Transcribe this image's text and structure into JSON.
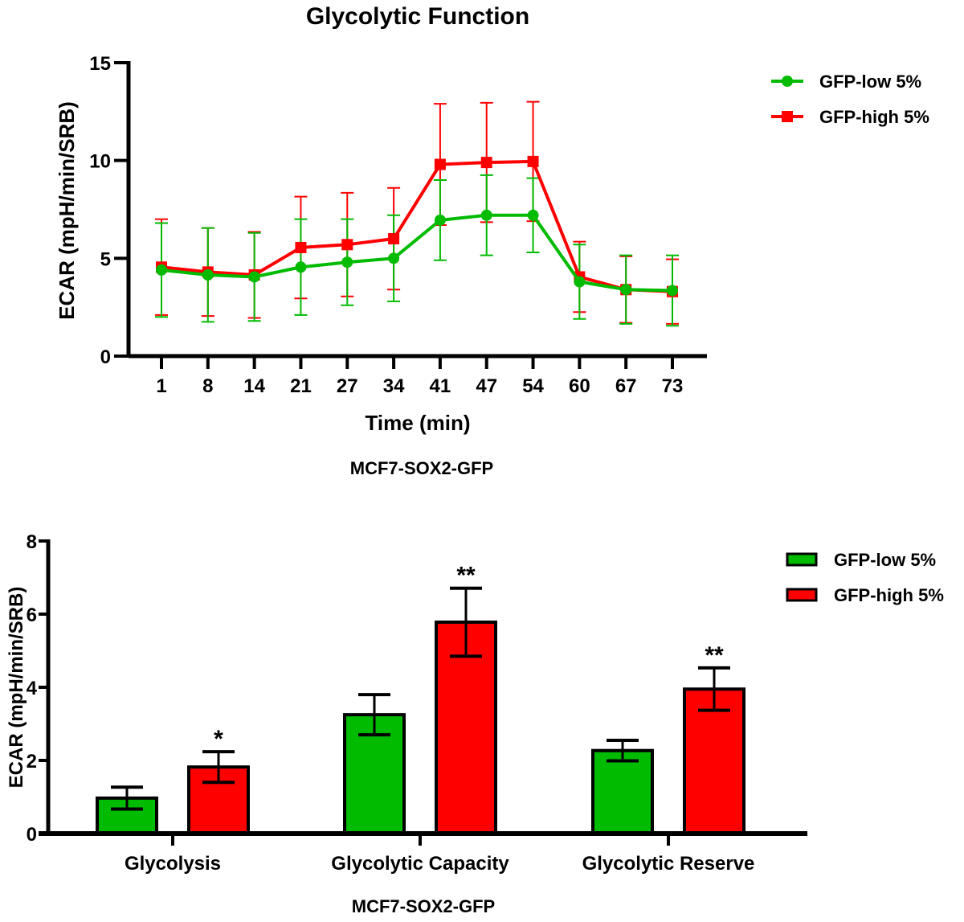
{
  "chart_data": [
    {
      "type": "line",
      "title": "Glycolytic Function",
      "xlabel": "Time (min)",
      "ylabel": "ECAR (mpH/min/SRB)",
      "subtitle": "MCF7-SOX2-GFP",
      "categories": [
        "1",
        "8",
        "14",
        "21",
        "27",
        "34",
        "41",
        "47",
        "54",
        "60",
        "67",
        "73"
      ],
      "ylim": [
        0,
        15
      ],
      "yticks": [
        0,
        5,
        10,
        15
      ],
      "legend_position": "top-right",
      "series": [
        {
          "name": "GFP-low 5%",
          "color": "#00bb00",
          "marker": "circle",
          "values": [
            4.4,
            4.15,
            4.05,
            4.55,
            4.8,
            5.0,
            6.95,
            7.2,
            7.2,
            3.8,
            3.4,
            3.35
          ],
          "error": [
            2.4,
            2.4,
            2.25,
            2.45,
            2.2,
            2.2,
            2.05,
            2.05,
            1.9,
            1.9,
            1.75,
            1.8
          ]
        },
        {
          "name": "GFP-high 5%",
          "color": "#ff0000",
          "marker": "square",
          "values": [
            4.55,
            4.3,
            4.15,
            5.55,
            5.7,
            6.0,
            9.8,
            9.9,
            9.95,
            4.05,
            3.4,
            3.3
          ],
          "error": [
            2.45,
            2.25,
            2.2,
            2.6,
            2.65,
            2.6,
            3.1,
            3.05,
            3.05,
            1.8,
            1.7,
            1.65
          ]
        }
      ]
    },
    {
      "type": "bar",
      "ylabel": "ECAR (mpH/min/SRB)",
      "xlabel": "MCF7-SOX2-GFP",
      "categories": [
        "Glycolysis",
        "Glycolytic Capacity",
        "Glycolytic Reserve"
      ],
      "ylim": [
        0,
        8
      ],
      "yticks": [
        0,
        2,
        4,
        6,
        8
      ],
      "legend_position": "top-right",
      "series": [
        {
          "name": "GFP-low 5%",
          "color": "#00bb00",
          "values": [
            0.97,
            3.25,
            2.27
          ],
          "error": [
            0.3,
            0.55,
            0.28
          ],
          "significance": [
            "",
            "",
            ""
          ]
        },
        {
          "name": "GFP-high 5%",
          "color": "#ff0000",
          "values": [
            1.82,
            5.78,
            3.95
          ],
          "error": [
            0.42,
            0.93,
            0.58
          ],
          "significance": [
            "*",
            "**",
            "**"
          ]
        }
      ]
    }
  ]
}
